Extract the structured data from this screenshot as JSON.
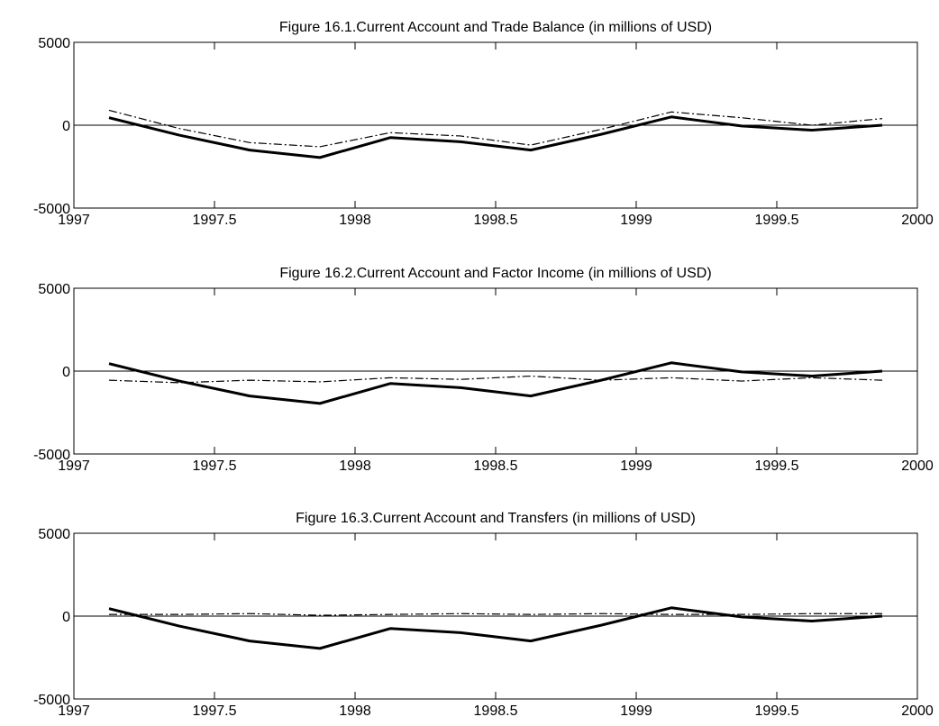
{
  "chart_data": [
    {
      "type": "line",
      "title": "Figure 16.1.Current Account and Trade Balance (in millions of USD)",
      "x": [
        1997.125,
        1997.375,
        1997.625,
        1997.875,
        1998.125,
        1998.375,
        1998.625,
        1998.875,
        1999.125,
        1999.375,
        1999.625,
        1999.875
      ],
      "series": [
        {
          "color": "#000000",
          "style": "solid",
          "values": [
            450,
            -600,
            -1500,
            -1950,
            -750,
            -1000,
            -1500,
            -550,
            500,
            -50,
            -300,
            0
          ]
        },
        {
          "color": "#000000",
          "style": "dashdot",
          "values": [
            900,
            -200,
            -1050,
            -1300,
            -450,
            -650,
            -1200,
            -250,
            800,
            450,
            0,
            400
          ]
        }
      ],
      "xlim": [
        1997,
        2000
      ],
      "ylim": [
        -5000,
        5000
      ],
      "xticks": [
        1997,
        1997.5,
        1998,
        1998.5,
        1999,
        1999.5,
        2000
      ],
      "yticks": [
        -5000,
        0,
        5000
      ],
      "zero_line": true
    },
    {
      "type": "line",
      "title": "Figure 16.2.Current Account and Factor Income (in millions of USD)",
      "x": [
        1997.125,
        1997.375,
        1997.625,
        1997.875,
        1998.125,
        1998.375,
        1998.625,
        1998.875,
        1999.125,
        1999.375,
        1999.625,
        1999.875
      ],
      "series": [
        {
          "color": "#000000",
          "style": "solid",
          "values": [
            450,
            -600,
            -1500,
            -1950,
            -750,
            -1000,
            -1500,
            -550,
            500,
            -50,
            -300,
            0
          ]
        },
        {
          "color": "#000000",
          "style": "dashdot",
          "values": [
            -550,
            -700,
            -550,
            -650,
            -400,
            -500,
            -300,
            -550,
            -400,
            -600,
            -400,
            -550
          ]
        }
      ],
      "xlim": [
        1997,
        2000
      ],
      "ylim": [
        -5000,
        5000
      ],
      "xticks": [
        1997,
        1997.5,
        1998,
        1998.5,
        1999,
        1999.5,
        2000
      ],
      "yticks": [
        -5000,
        0,
        5000
      ],
      "zero_line": true
    },
    {
      "type": "line",
      "title": "Figure 16.3.Current Account and Transfers (in millions of USD)",
      "x": [
        1997.125,
        1997.375,
        1997.625,
        1997.875,
        1998.125,
        1998.375,
        1998.625,
        1998.875,
        1999.125,
        1999.375,
        1999.625,
        1999.875
      ],
      "series": [
        {
          "color": "#000000",
          "style": "solid",
          "values": [
            450,
            -600,
            -1500,
            -1950,
            -750,
            -1000,
            -1500,
            -550,
            500,
            -50,
            -300,
            0
          ]
        },
        {
          "color": "#000000",
          "style": "dashdot",
          "values": [
            100,
            100,
            150,
            50,
            100,
            150,
            100,
            150,
            100,
            100,
            150,
            150
          ]
        }
      ],
      "xlim": [
        1997,
        2000
      ],
      "ylim": [
        -5000,
        5000
      ],
      "xticks": [
        1997,
        1997.5,
        1998,
        1998.5,
        1999,
        1999.5,
        2000
      ],
      "yticks": [
        -5000,
        0,
        5000
      ],
      "zero_line": true
    }
  ]
}
